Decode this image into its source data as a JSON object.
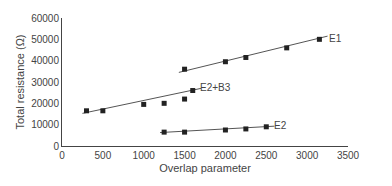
{
  "chart_data": {
    "type": "scatter",
    "xlabel": "Overlap parameter",
    "ylabel": "Total resistance (Ω)",
    "xlim": [
      0,
      3500
    ],
    "ylim": [
      0,
      60000
    ],
    "xticks": [
      0,
      500,
      1000,
      1500,
      2000,
      2500,
      3000,
      3500
    ],
    "yticks": [
      0,
      10000,
      20000,
      30000,
      40000,
      50000,
      60000
    ],
    "grid": false,
    "marker": "square",
    "color": "#222222",
    "series": [
      {
        "name": "E1",
        "x": [
          1500,
          2000,
          2250,
          2750,
          3150
        ],
        "values": [
          36000,
          39500,
          41500,
          46000,
          50000
        ],
        "fit": {
          "x": [
            1430,
            3250
          ],
          "values": [
            34500,
            51500
          ],
          "color": "#555555"
        },
        "annotation": {
          "x": 3200,
          "y": 50500
        }
      },
      {
        "name": "E2+B3",
        "x": [
          300,
          500,
          1000,
          1250,
          1500,
          1600
        ],
        "values": [
          16500,
          16500,
          19500,
          20000,
          22000,
          26000
        ],
        "fit": {
          "x": [
            250,
            1700
          ],
          "values": [
            15300,
            27000
          ],
          "color": "#555555"
        },
        "annotation": {
          "x": 1620,
          "y": 27500
        }
      },
      {
        "name": "E2",
        "x": [
          1250,
          1500,
          2000,
          2250,
          2500
        ],
        "values": [
          6500,
          6500,
          7500,
          8000,
          9000
        ],
        "fit": {
          "x": [
            1200,
            2600
          ],
          "values": [
            6300,
            9300
          ],
          "color": "#555555"
        },
        "annotation": {
          "x": 2520,
          "y": 9500
        }
      }
    ]
  }
}
